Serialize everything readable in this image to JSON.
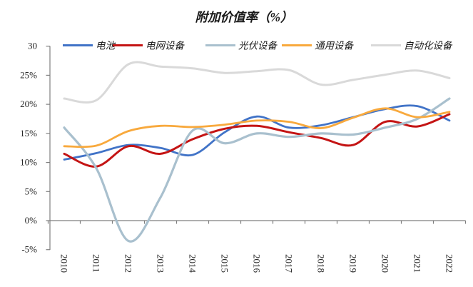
{
  "chart_data": {
    "type": "line",
    "title": "附加价值率（%）",
    "smooth": true,
    "grid": false,
    "legend_position": "top",
    "categories": [
      "2010",
      "2011",
      "2012",
      "2013",
      "2014",
      "2015",
      "2016",
      "2017",
      "2018",
      "2019",
      "2020",
      "2021",
      "2022"
    ],
    "y_axis": {
      "labels": [
        "30",
        "25%",
        "20%",
        "15%",
        "10%",
        "5%",
        "0%",
        "-5%"
      ],
      "values": [
        30,
        25,
        20,
        15,
        10,
        5,
        0,
        -5
      ],
      "range": [
        -5,
        30
      ],
      "unit": "%"
    },
    "series": [
      {
        "name": "电池",
        "color": "#4173C7",
        "width": 2.8,
        "values": [
          10.5,
          11.6,
          13.0,
          12.5,
          11.3,
          15.2,
          17.9,
          16.0,
          16.4,
          17.8,
          19.2,
          19.7,
          17.2
        ]
      },
      {
        "name": "电网设备",
        "color": "#C41414",
        "width": 3.0,
        "values": [
          11.5,
          9.3,
          12.8,
          11.5,
          14.0,
          15.8,
          16.3,
          15.2,
          14.2,
          13.0,
          17.0,
          16.2,
          18.3
        ]
      },
      {
        "name": "光伏设备",
        "color": "#A9C0CE",
        "width": 3.2,
        "values": [
          16.0,
          9.0,
          -3.5,
          4.0,
          15.5,
          13.3,
          15.0,
          14.4,
          15.0,
          14.8,
          16.0,
          17.5,
          21.0
        ]
      },
      {
        "name": "通用设备",
        "color": "#F8A93D",
        "width": 2.8,
        "values": [
          12.8,
          12.9,
          15.4,
          16.3,
          16.1,
          16.5,
          17.2,
          17.0,
          15.9,
          17.7,
          19.3,
          17.8,
          18.7
        ]
      },
      {
        "name": "自动化设备",
        "color": "#D9D9D9",
        "width": 3.0,
        "values": [
          21.0,
          20.7,
          26.9,
          26.5,
          26.2,
          25.4,
          25.7,
          25.9,
          23.4,
          24.2,
          25.1,
          25.8,
          24.5
        ]
      }
    ]
  }
}
